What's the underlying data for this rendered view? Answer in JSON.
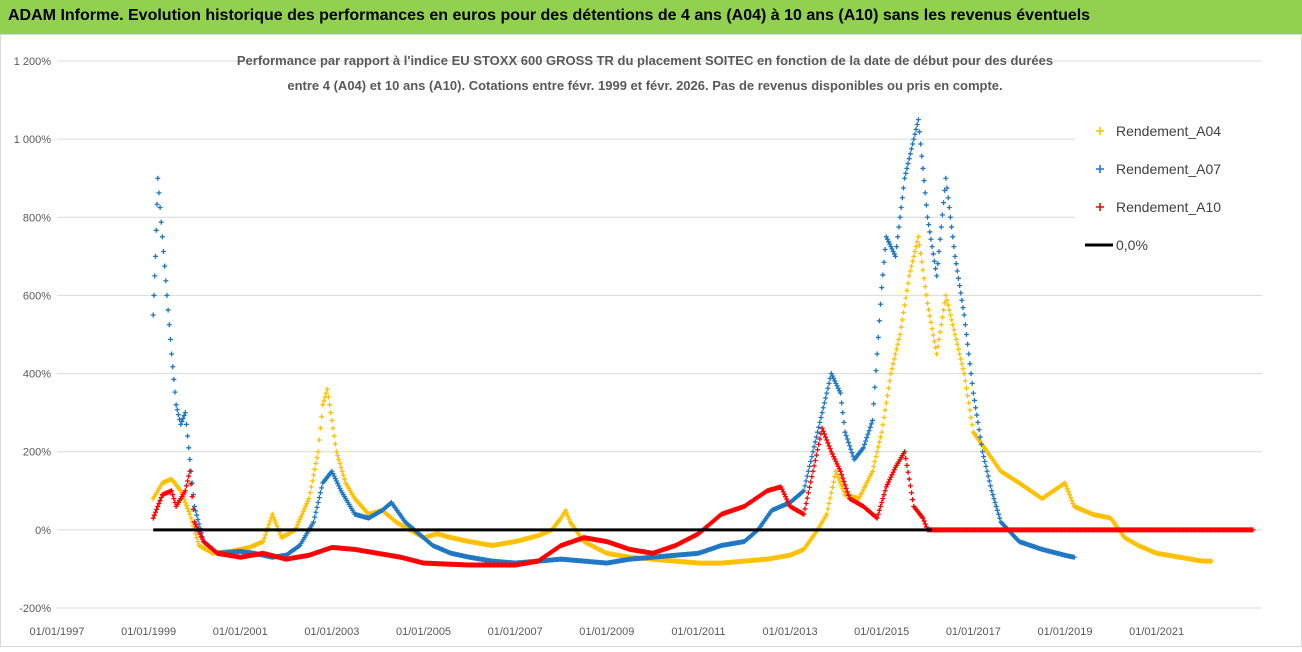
{
  "header": {
    "title": "ADAM Informe. Evolution historique des performances en euros pour des détentions de 4 ans (A04) à 10 ans (A10) sans les revenus éventuels"
  },
  "chart_data": {
    "type": "scatter",
    "title_line1": "Performance par rapport à l'indice EU STOXX 600 GROSS TR  du placement SOITEC en fonction de la date de début pour des durées",
    "title_line2": "entre 4 (A04) et 10 ans (A10). Cotations entre févr. 1999 et févr. 2026. Pas de revenus disponibles ou pris en compte.",
    "ylim": [
      -200,
      1200
    ],
    "y_ticks": [
      -200,
      0,
      200,
      400,
      600,
      800,
      1000,
      1200
    ],
    "y_tick_labels": [
      "-200%",
      "0%",
      "200%",
      "400%",
      "600%",
      "800%",
      "1 000%",
      "1 200%"
    ],
    "xlim": [
      1997.0,
      2023.3
    ],
    "x_ticks": [
      1997,
      1999,
      2001,
      2003,
      2005,
      2007,
      2009,
      2011,
      2013,
      2015,
      2017,
      2019,
      2021
    ],
    "x_tick_labels": [
      "01/01/1997",
      "01/01/1999",
      "01/01/2001",
      "01/01/2003",
      "01/01/2005",
      "01/01/2007",
      "01/01/2009",
      "01/01/2011",
      "01/01/2013",
      "01/01/2015",
      "01/01/2017",
      "01/01/2019",
      "01/01/2021"
    ],
    "legend_position": "right",
    "series": [
      {
        "name": "Rendement_A04",
        "color": "#ffc000",
        "points": [
          [
            1999.1,
            80
          ],
          [
            1999.3,
            120
          ],
          [
            1999.5,
            130
          ],
          [
            1999.7,
            100
          ],
          [
            1999.9,
            40
          ],
          [
            2000.1,
            -40
          ],
          [
            2000.4,
            -60
          ],
          [
            2000.8,
            -55
          ],
          [
            2001.2,
            -45
          ],
          [
            2001.5,
            -30
          ],
          [
            2001.7,
            40
          ],
          [
            2001.9,
            -20
          ],
          [
            2002.2,
            0
          ],
          [
            2002.5,
            80
          ],
          [
            2002.7,
            200
          ],
          [
            2002.8,
            320
          ],
          [
            2002.9,
            360
          ],
          [
            2003.0,
            280
          ],
          [
            2003.1,
            200
          ],
          [
            2003.3,
            120
          ],
          [
            2003.5,
            80
          ],
          [
            2003.8,
            40
          ],
          [
            2004.1,
            50
          ],
          [
            2004.4,
            20
          ],
          [
            2004.7,
            0
          ],
          [
            2005.0,
            -20
          ],
          [
            2005.3,
            -10
          ],
          [
            2005.6,
            -20
          ],
          [
            2006.0,
            -30
          ],
          [
            2006.5,
            -40
          ],
          [
            2007.0,
            -30
          ],
          [
            2007.5,
            -15
          ],
          [
            2007.8,
            0
          ],
          [
            2008.0,
            30
          ],
          [
            2008.1,
            50
          ],
          [
            2008.2,
            20
          ],
          [
            2008.5,
            -30
          ],
          [
            2009.0,
            -60
          ],
          [
            2009.5,
            -70
          ],
          [
            2010.0,
            -75
          ],
          [
            2010.5,
            -80
          ],
          [
            2011.0,
            -85
          ],
          [
            2011.5,
            -85
          ],
          [
            2012.0,
            -80
          ],
          [
            2012.5,
            -75
          ],
          [
            2013.0,
            -65
          ],
          [
            2013.3,
            -50
          ],
          [
            2013.6,
            0
          ],
          [
            2013.8,
            40
          ],
          [
            2014.0,
            150
          ],
          [
            2014.2,
            90
          ],
          [
            2014.5,
            80
          ],
          [
            2014.8,
            150
          ],
          [
            2015.0,
            250
          ],
          [
            2015.2,
            400
          ],
          [
            2015.4,
            500
          ],
          [
            2015.6,
            650
          ],
          [
            2015.8,
            750
          ],
          [
            2016.0,
            580
          ],
          [
            2016.2,
            450
          ],
          [
            2016.4,
            600
          ],
          [
            2016.6,
            500
          ],
          [
            2016.8,
            400
          ],
          [
            2017.0,
            250
          ],
          [
            2017.3,
            200
          ],
          [
            2017.6,
            150
          ],
          [
            2018.0,
            120
          ],
          [
            2018.5,
            80
          ],
          [
            2019.0,
            120
          ],
          [
            2019.2,
            60
          ],
          [
            2019.6,
            40
          ],
          [
            2020.0,
            30
          ],
          [
            2020.3,
            -20
          ],
          [
            2020.6,
            -40
          ],
          [
            2021.0,
            -60
          ],
          [
            2021.5,
            -70
          ],
          [
            2022.0,
            -80
          ],
          [
            2022.2,
            -80
          ]
        ]
      },
      {
        "name": "Rendement_A07",
        "color": "#1f77c4",
        "points": [
          [
            1999.1,
            550
          ],
          [
            1999.15,
            700
          ],
          [
            1999.2,
            900
          ],
          [
            1999.3,
            750
          ],
          [
            1999.4,
            600
          ],
          [
            1999.5,
            450
          ],
          [
            1999.6,
            320
          ],
          [
            1999.7,
            270
          ],
          [
            1999.8,
            300
          ],
          [
            1999.9,
            180
          ],
          [
            2000.0,
            60
          ],
          [
            2000.2,
            -30
          ],
          [
            2000.5,
            -60
          ],
          [
            2001.0,
            -55
          ],
          [
            2001.3,
            -60
          ],
          [
            2001.7,
            -70
          ],
          [
            2002.0,
            -65
          ],
          [
            2002.3,
            -40
          ],
          [
            2002.6,
            20
          ],
          [
            2002.8,
            120
          ],
          [
            2003.0,
            150
          ],
          [
            2003.2,
            100
          ],
          [
            2003.5,
            40
          ],
          [
            2003.8,
            30
          ],
          [
            2004.1,
            50
          ],
          [
            2004.3,
            70
          ],
          [
            2004.6,
            20
          ],
          [
            2004.9,
            -10
          ],
          [
            2005.2,
            -40
          ],
          [
            2005.6,
            -60
          ],
          [
            2006.0,
            -70
          ],
          [
            2006.5,
            -80
          ],
          [
            2007.0,
            -85
          ],
          [
            2007.5,
            -80
          ],
          [
            2008.0,
            -75
          ],
          [
            2008.5,
            -80
          ],
          [
            2009.0,
            -85
          ],
          [
            2009.5,
            -75
          ],
          [
            2010.0,
            -70
          ],
          [
            2010.5,
            -65
          ],
          [
            2011.0,
            -60
          ],
          [
            2011.5,
            -40
          ],
          [
            2012.0,
            -30
          ],
          [
            2012.3,
            0
          ],
          [
            2012.6,
            50
          ],
          [
            2013.0,
            70
          ],
          [
            2013.3,
            100
          ],
          [
            2013.5,
            200
          ],
          [
            2013.7,
            300
          ],
          [
            2013.9,
            400
          ],
          [
            2014.1,
            350
          ],
          [
            2014.2,
            250
          ],
          [
            2014.4,
            180
          ],
          [
            2014.6,
            210
          ],
          [
            2014.8,
            280
          ],
          [
            2015.0,
            620
          ],
          [
            2015.1,
            750
          ],
          [
            2015.3,
            700
          ],
          [
            2015.5,
            900
          ],
          [
            2015.7,
            1000
          ],
          [
            2015.8,
            1050
          ],
          [
            2016.0,
            800
          ],
          [
            2016.2,
            650
          ],
          [
            2016.4,
            900
          ],
          [
            2016.6,
            700
          ],
          [
            2016.8,
            550
          ],
          [
            2017.0,
            350
          ],
          [
            2017.2,
            200
          ],
          [
            2017.4,
            100
          ],
          [
            2017.6,
            20
          ],
          [
            2018.0,
            -30
          ],
          [
            2018.5,
            -50
          ],
          [
            2019.0,
            -65
          ],
          [
            2019.2,
            -70
          ]
        ]
      },
      {
        "name": "Rendement_A10",
        "color": "#ff0000",
        "points": [
          [
            1999.1,
            30
          ],
          [
            1999.3,
            90
          ],
          [
            1999.5,
            100
          ],
          [
            1999.6,
            60
          ],
          [
            1999.8,
            100
          ],
          [
            1999.9,
            150
          ],
          [
            2000.0,
            20
          ],
          [
            2000.2,
            -30
          ],
          [
            2000.5,
            -60
          ],
          [
            2001.0,
            -70
          ],
          [
            2001.5,
            -60
          ],
          [
            2002.0,
            -75
          ],
          [
            2002.5,
            -65
          ],
          [
            2003.0,
            -45
          ],
          [
            2003.5,
            -50
          ],
          [
            2004.0,
            -60
          ],
          [
            2004.5,
            -70
          ],
          [
            2005.0,
            -85
          ],
          [
            2006.0,
            -90
          ],
          [
            2007.0,
            -90
          ],
          [
            2007.5,
            -80
          ],
          [
            2008.0,
            -40
          ],
          [
            2008.5,
            -20
          ],
          [
            2009.0,
            -30
          ],
          [
            2009.5,
            -50
          ],
          [
            2010.0,
            -60
          ],
          [
            2010.5,
            -40
          ],
          [
            2011.0,
            -10
          ],
          [
            2011.5,
            40
          ],
          [
            2012.0,
            60
          ],
          [
            2012.5,
            100
          ],
          [
            2012.8,
            110
          ],
          [
            2013.0,
            60
          ],
          [
            2013.3,
            40
          ],
          [
            2013.5,
            150
          ],
          [
            2013.7,
            260
          ],
          [
            2013.9,
            200
          ],
          [
            2014.1,
            150
          ],
          [
            2014.3,
            80
          ],
          [
            2014.6,
            60
          ],
          [
            2014.9,
            30
          ],
          [
            2015.1,
            110
          ],
          [
            2015.3,
            160
          ],
          [
            2015.5,
            200
          ],
          [
            2015.7,
            60
          ],
          [
            2015.9,
            30
          ],
          [
            2016.0,
            0
          ],
          [
            2016.5,
            0
          ],
          [
            2017.5,
            0
          ],
          [
            2018.5,
            0
          ],
          [
            2019.5,
            0
          ],
          [
            2020.5,
            0
          ],
          [
            2021.5,
            0
          ],
          [
            2022.5,
            0
          ],
          [
            2023.1,
            0
          ]
        ]
      },
      {
        "name": "0,0%",
        "color": "#000000",
        "line": true,
        "points": [
          [
            1999.1,
            0
          ],
          [
            2016.1,
            0
          ]
        ]
      }
    ]
  }
}
